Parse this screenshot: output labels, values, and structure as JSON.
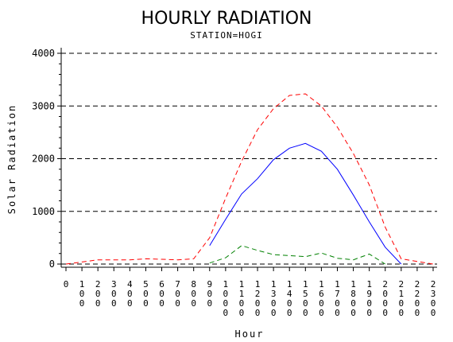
{
  "chart_data": {
    "type": "line",
    "title": "HOURLY RADIATION",
    "subtitle": "STATION=HOGI",
    "xlabel": "Hour",
    "ylabel": "Solar Radiation",
    "ylim": [
      0,
      4000
    ],
    "xlim": [
      0,
      2300
    ],
    "yticks": [
      0,
      1000,
      2000,
      3000,
      4000
    ],
    "ytick_labels": [
      "0",
      "1000",
      "2000",
      "3000",
      "4000"
    ],
    "xticks": [
      0,
      100,
      200,
      300,
      400,
      500,
      600,
      700,
      800,
      900,
      1000,
      1100,
      1200,
      1300,
      1400,
      1500,
      1600,
      1700,
      1800,
      1900,
      2000,
      2100,
      2200,
      2300
    ],
    "xtick_labels": [
      "0",
      "100",
      "200",
      "300",
      "400",
      "500",
      "600",
      "700",
      "800",
      "900",
      "1000",
      "1100",
      "1200",
      "1300",
      "1400",
      "1500",
      "1600",
      "1700",
      "1800",
      "1900",
      "2000",
      "2100",
      "2200",
      "2300"
    ],
    "grid": "horizontal dashed",
    "series": [
      {
        "color": "#ff0000",
        "style": "dashed",
        "x": [
          0,
          100,
          200,
          300,
          400,
          500,
          600,
          700,
          800,
          900,
          1000,
          1100,
          1200,
          1300,
          1400,
          1500,
          1600,
          1700,
          1800,
          1900,
          2000,
          2100,
          2200,
          2300
        ],
        "values": [
          0,
          40,
          80,
          80,
          80,
          100,
          90,
          80,
          100,
          500,
          1250,
          1950,
          2550,
          2950,
          3200,
          3230,
          3000,
          2600,
          2100,
          1500,
          700,
          100,
          50,
          0
        ]
      },
      {
        "color": "#0000ff",
        "style": "solid",
        "x": [
          900,
          1000,
          1100,
          1200,
          1300,
          1400,
          1500,
          1600,
          1700,
          1800,
          1900,
          2000,
          2100
        ],
        "values": [
          350,
          850,
          1330,
          1620,
          1980,
          2200,
          2290,
          2140,
          1800,
          1310,
          800,
          320,
          0
        ]
      },
      {
        "color": "#008000",
        "style": "dashed",
        "x": [
          900,
          1000,
          1100,
          1200,
          1300,
          1400,
          1500,
          1600,
          1700,
          1800,
          1900,
          2000
        ],
        "values": [
          20,
          120,
          350,
          260,
          180,
          160,
          140,
          210,
          110,
          80,
          190,
          0
        ]
      }
    ]
  }
}
